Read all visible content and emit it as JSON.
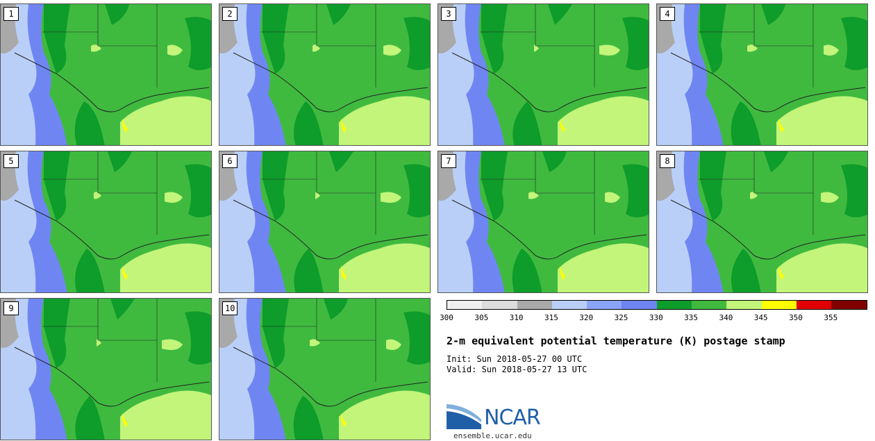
{
  "panels": [
    {
      "label": "1"
    },
    {
      "label": "2"
    },
    {
      "label": "3"
    },
    {
      "label": "4"
    },
    {
      "label": "5"
    },
    {
      "label": "6"
    },
    {
      "label": "7"
    },
    {
      "label": "8"
    },
    {
      "label": "9"
    },
    {
      "label": "10"
    }
  ],
  "colorbar": {
    "colors": [
      "#f0f0f0",
      "#dcdcdc",
      "#a9a9a9",
      "#b9cff7",
      "#8aa4f7",
      "#6f86f2",
      "#0e9c2a",
      "#3fba3f",
      "#c2f57a",
      "#ffff00",
      "#e00000",
      "#800000"
    ],
    "ticks": [
      "300",
      "305",
      "310",
      "315",
      "320",
      "325",
      "330",
      "335",
      "340",
      "345",
      "350",
      "355"
    ]
  },
  "title": "2-m equivalent potential temperature (K) postage stamp",
  "init": "Init: Sun 2018-05-27 00 UTC",
  "valid": "Valid: Sun 2018-05-27 13 UTC",
  "logo": {
    "text": "NCAR",
    "url": "ensemble.ucar.edu"
  }
}
